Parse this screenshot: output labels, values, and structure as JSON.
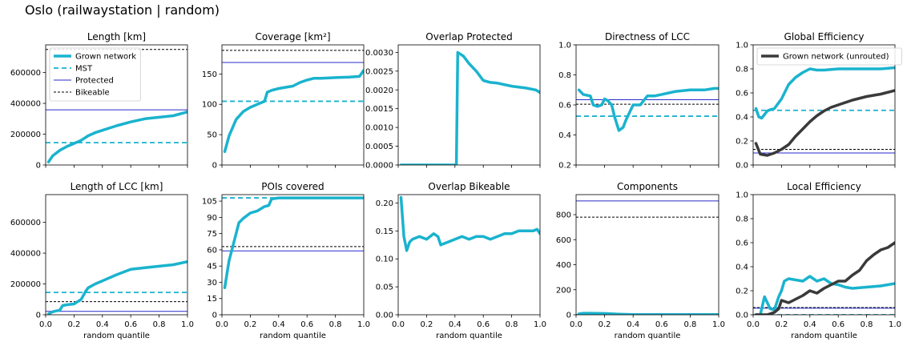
{
  "title": "Oslo (railwaystation | random)",
  "colors": {
    "grown": "#1ab3ce",
    "mst": "#1ab3ce",
    "protected": "#2a2acd",
    "bikeable": "#000000",
    "unrouted": "#3a3a3a",
    "axis": "#000000"
  },
  "chart_data": [
    {
      "id": "length",
      "type": "line",
      "title": "Length [km]",
      "xlim": [
        0,
        1
      ],
      "ylim": [
        0,
        780000
      ],
      "xticks": [
        0,
        0.2,
        0.4,
        0.6,
        0.8,
        1.0
      ],
      "xticklabels": [],
      "yticks": [
        0,
        200000,
        400000,
        600000
      ],
      "yticklabels": [
        "0",
        "200000",
        "400000",
        "600000"
      ],
      "hlines": [
        {
          "kind": "mst",
          "value": 145000
        },
        {
          "kind": "protected",
          "value": 358000
        },
        {
          "kind": "bikeable",
          "value": 750000
        }
      ],
      "series": [
        {
          "name": "Grown network",
          "kind": "grown",
          "x": [
            0.02,
            0.05,
            0.1,
            0.15,
            0.2,
            0.25,
            0.3,
            0.35,
            0.4,
            0.5,
            0.6,
            0.7,
            0.8,
            0.9,
            1.0
          ],
          "y": [
            20000,
            60000,
            95000,
            120000,
            140000,
            160000,
            190000,
            210000,
            225000,
            255000,
            280000,
            300000,
            310000,
            320000,
            345000
          ]
        }
      ],
      "legend": {
        "position": "top-left",
        "entries": [
          {
            "label": "Grown network",
            "kind": "grown"
          },
          {
            "label": "MST",
            "kind": "mst"
          },
          {
            "label": "Protected",
            "kind": "protected"
          },
          {
            "label": "Bikeable",
            "kind": "bikeable"
          }
        ]
      }
    },
    {
      "id": "coverage",
      "type": "line",
      "title": "Coverage [km²]",
      "xlim": [
        0,
        1
      ],
      "ylim": [
        0,
        198
      ],
      "xticks": [
        0,
        0.2,
        0.4,
        0.6,
        0.8,
        1.0
      ],
      "xticklabels": [],
      "yticks": [
        0,
        50,
        100,
        150
      ],
      "yticklabels": [
        "0",
        "50",
        "100",
        "150"
      ],
      "hlines": [
        {
          "kind": "mst",
          "value": 105
        },
        {
          "kind": "protected",
          "value": 169
        },
        {
          "kind": "bikeable",
          "value": 189
        }
      ],
      "series": [
        {
          "name": "Grown network",
          "kind": "grown",
          "x": [
            0.02,
            0.05,
            0.1,
            0.15,
            0.2,
            0.25,
            0.3,
            0.32,
            0.35,
            0.4,
            0.45,
            0.5,
            0.55,
            0.6,
            0.65,
            0.7,
            0.8,
            0.9,
            0.97,
            1.0
          ],
          "y": [
            22,
            48,
            75,
            88,
            95,
            100,
            105,
            120,
            123,
            126,
            128,
            130,
            136,
            140,
            143,
            143,
            144,
            145,
            146,
            156
          ]
        }
      ]
    },
    {
      "id": "overlap_protected",
      "type": "line",
      "title": "Overlap Protected",
      "xlim": [
        0,
        1
      ],
      "ylim": [
        0,
        0.0032
      ],
      "xticks": [
        0,
        0.2,
        0.4,
        0.6,
        0.8,
        1.0
      ],
      "xticklabels": [],
      "yticks": [
        0,
        0.0005,
        0.001,
        0.0015,
        0.002,
        0.0025,
        0.003
      ],
      "yticklabels": [
        "0.0000",
        "0.0005",
        "0.0010",
        "0.0015",
        "0.0020",
        "0.0025",
        "0.0030"
      ],
      "hlines": [],
      "series": [
        {
          "name": "Grown network",
          "kind": "grown",
          "x": [
            0.02,
            0.1,
            0.2,
            0.3,
            0.4,
            0.41,
            0.42,
            0.46,
            0.5,
            0.55,
            0.6,
            0.65,
            0.7,
            0.8,
            0.9,
            0.97,
            1.0
          ],
          "y": [
            0,
            0,
            0,
            0,
            0,
            0,
            0.003,
            0.0029,
            0.0027,
            0.0025,
            0.00225,
            0.0022,
            0.00218,
            0.0021,
            0.00205,
            0.002,
            0.00193
          ]
        }
      ]
    },
    {
      "id": "directness",
      "type": "line",
      "title": "Directness of LCC",
      "xlim": [
        0,
        1
      ],
      "ylim": [
        0.2,
        1.0
      ],
      "xticks": [
        0,
        0.2,
        0.4,
        0.6,
        0.8,
        1.0
      ],
      "xticklabels": [],
      "yticks": [
        0.2,
        0.4,
        0.6,
        0.8,
        1.0
      ],
      "yticklabels": [
        "0.2",
        "0.4",
        "0.6",
        "0.8",
        "1.0"
      ],
      "hlines": [
        {
          "kind": "mst",
          "value": 0.525
        },
        {
          "kind": "protected",
          "value": 0.635
        },
        {
          "kind": "bikeable",
          "value": 0.605
        }
      ],
      "series": [
        {
          "name": "Grown network",
          "kind": "grown",
          "x": [
            0.02,
            0.05,
            0.1,
            0.12,
            0.15,
            0.18,
            0.2,
            0.22,
            0.25,
            0.27,
            0.3,
            0.33,
            0.35,
            0.4,
            0.45,
            0.5,
            0.55,
            0.6,
            0.65,
            0.7,
            0.8,
            0.9,
            0.97,
            1.0
          ],
          "y": [
            0.7,
            0.67,
            0.66,
            0.6,
            0.59,
            0.6,
            0.64,
            0.63,
            0.6,
            0.52,
            0.43,
            0.45,
            0.5,
            0.6,
            0.6,
            0.66,
            0.66,
            0.67,
            0.68,
            0.69,
            0.7,
            0.7,
            0.71,
            0.71
          ]
        }
      ]
    },
    {
      "id": "global_eff",
      "type": "line",
      "title": "Global Efficiency",
      "xlim": [
        0,
        1
      ],
      "ylim": [
        0,
        1.0
      ],
      "xticks": [
        0,
        0.2,
        0.4,
        0.6,
        0.8,
        1.0
      ],
      "xticklabels": [],
      "yticks": [
        0,
        0.2,
        0.4,
        0.6,
        0.8,
        1.0
      ],
      "yticklabels": [
        "0.0",
        "0.2",
        "0.4",
        "0.6",
        "0.8",
        "1.0"
      ],
      "hlines": [
        {
          "kind": "mst",
          "value": 0.455
        },
        {
          "kind": "protected",
          "value": 0.1
        },
        {
          "kind": "bikeable",
          "value": 0.13
        }
      ],
      "series": [
        {
          "name": "Grown network",
          "kind": "grown",
          "x": [
            0.02,
            0.04,
            0.06,
            0.08,
            0.1,
            0.12,
            0.15,
            0.2,
            0.25,
            0.3,
            0.35,
            0.4,
            0.45,
            0.5,
            0.6,
            0.7,
            0.8,
            0.9,
            1.0
          ],
          "y": [
            0.47,
            0.4,
            0.39,
            0.42,
            0.45,
            0.46,
            0.47,
            0.55,
            0.67,
            0.73,
            0.77,
            0.8,
            0.79,
            0.79,
            0.8,
            0.8,
            0.8,
            0.8,
            0.81
          ]
        },
        {
          "name": "Grown network (unrouted)",
          "kind": "unrouted",
          "x": [
            0.02,
            0.05,
            0.1,
            0.15,
            0.2,
            0.25,
            0.3,
            0.35,
            0.4,
            0.45,
            0.5,
            0.55,
            0.6,
            0.7,
            0.8,
            0.9,
            1.0
          ],
          "y": [
            0.18,
            0.09,
            0.08,
            0.1,
            0.13,
            0.17,
            0.24,
            0.3,
            0.36,
            0.41,
            0.45,
            0.48,
            0.5,
            0.54,
            0.57,
            0.59,
            0.62
          ]
        }
      ],
      "legend": {
        "position": "top-left",
        "entries": [
          {
            "label": "Grown network (unrouted)",
            "kind": "unrouted"
          }
        ]
      }
    },
    {
      "id": "length_lcc",
      "type": "line",
      "title": "Length of LCC [km]",
      "xlim": [
        0,
        1
      ],
      "ylim": [
        0,
        780000
      ],
      "xticks": [
        0,
        0.2,
        0.4,
        0.6,
        0.8,
        1.0
      ],
      "xticklabels": [
        "0.0",
        "0.2",
        "0.4",
        "0.6",
        "0.8",
        "1.0"
      ],
      "yticks": [
        0,
        200000,
        400000,
        600000
      ],
      "yticklabels": [
        "0",
        "200000",
        "400000",
        "600000"
      ],
      "xlabel": "random quantile",
      "hlines": [
        {
          "kind": "mst",
          "value": 145000
        },
        {
          "kind": "protected",
          "value": 22000
        },
        {
          "kind": "bikeable",
          "value": 85000
        }
      ],
      "series": [
        {
          "name": "Grown network",
          "kind": "grown",
          "x": [
            0.02,
            0.05,
            0.1,
            0.12,
            0.15,
            0.2,
            0.25,
            0.28,
            0.3,
            0.35,
            0.4,
            0.5,
            0.6,
            0.7,
            0.8,
            0.9,
            1.0
          ],
          "y": [
            5000,
            20000,
            30000,
            60000,
            65000,
            70000,
            100000,
            150000,
            175000,
            200000,
            220000,
            260000,
            295000,
            305000,
            315000,
            325000,
            345000
          ]
        }
      ]
    },
    {
      "id": "pois",
      "type": "line",
      "title": "POIs covered",
      "xlim": [
        0,
        1
      ],
      "ylim": [
        0,
        111
      ],
      "xticks": [
        0,
        0.2,
        0.4,
        0.6,
        0.8,
        1.0
      ],
      "xticklabels": [
        "0.0",
        "0.2",
        "0.4",
        "0.6",
        "0.8",
        "1.0"
      ],
      "yticks": [
        0,
        15,
        30,
        45,
        60,
        75,
        90,
        105
      ],
      "yticklabels": [
        "0",
        "15",
        "30",
        "45",
        "60",
        "75",
        "90",
        "105"
      ],
      "xlabel": "random quantile",
      "hlines": [
        {
          "kind": "mst",
          "value": 108
        },
        {
          "kind": "protected",
          "value": 59
        },
        {
          "kind": "bikeable",
          "value": 63
        }
      ],
      "series": [
        {
          "name": "Grown network",
          "kind": "grown",
          "x": [
            0.02,
            0.05,
            0.08,
            0.1,
            0.12,
            0.15,
            0.2,
            0.25,
            0.3,
            0.33,
            0.35,
            0.4,
            0.5,
            0.6,
            0.8,
            1.0
          ],
          "y": [
            25,
            50,
            65,
            75,
            85,
            89,
            94,
            96,
            100,
            101,
            107,
            108,
            108,
            108,
            108,
            108
          ]
        }
      ]
    },
    {
      "id": "overlap_bikeable",
      "type": "line",
      "title": "Overlap Bikeable",
      "xlim": [
        0,
        1
      ],
      "ylim": [
        0,
        0.215
      ],
      "xticks": [
        0,
        0.2,
        0.4,
        0.6,
        0.8,
        1.0
      ],
      "xticklabels": [
        "0.0",
        "0.2",
        "0.4",
        "0.6",
        "0.8",
        "1.0"
      ],
      "yticks": [
        0,
        0.05,
        0.1,
        0.15,
        0.2
      ],
      "yticklabels": [
        "0.00",
        "0.05",
        "0.10",
        "0.15",
        "0.20"
      ],
      "xlabel": "random quantile",
      "hlines": [],
      "series": [
        {
          "name": "Grown network",
          "kind": "grown",
          "x": [
            0.02,
            0.04,
            0.06,
            0.08,
            0.1,
            0.15,
            0.2,
            0.25,
            0.28,
            0.3,
            0.35,
            0.4,
            0.45,
            0.5,
            0.55,
            0.6,
            0.65,
            0.7,
            0.75,
            0.8,
            0.85,
            0.9,
            0.95,
            0.98,
            1.0
          ],
          "y": [
            0.21,
            0.14,
            0.115,
            0.13,
            0.135,
            0.14,
            0.135,
            0.145,
            0.14,
            0.125,
            0.13,
            0.135,
            0.14,
            0.135,
            0.14,
            0.14,
            0.135,
            0.14,
            0.145,
            0.145,
            0.15,
            0.15,
            0.15,
            0.153,
            0.145
          ]
        }
      ]
    },
    {
      "id": "components",
      "type": "line",
      "title": "Components",
      "xlim": [
        0,
        1
      ],
      "ylim": [
        0,
        960
      ],
      "xticks": [
        0,
        0.2,
        0.4,
        0.6,
        0.8,
        1.0
      ],
      "xticklabels": [
        "0.0",
        "0.2",
        "0.4",
        "0.6",
        "0.8",
        "1.0"
      ],
      "yticks": [
        0,
        200,
        400,
        600,
        800
      ],
      "yticklabels": [
        "0",
        "200",
        "400",
        "600",
        "800"
      ],
      "xlabel": "random quantile",
      "hlines": [
        {
          "kind": "mst",
          "value": 1
        },
        {
          "kind": "protected",
          "value": 910
        },
        {
          "kind": "bikeable",
          "value": 780
        }
      ],
      "series": [
        {
          "name": "Grown network",
          "kind": "grown",
          "x": [
            0.02,
            0.05,
            0.1,
            0.2,
            0.3,
            0.4,
            0.6,
            0.8,
            1.0
          ],
          "y": [
            8,
            12,
            12,
            10,
            5,
            2,
            1,
            1,
            1
          ]
        }
      ]
    },
    {
      "id": "local_eff",
      "type": "line",
      "title": "Local Efficiency",
      "xlim": [
        0,
        1
      ],
      "ylim": [
        0,
        1.0
      ],
      "xticks": [
        0,
        0.2,
        0.4,
        0.6,
        0.8,
        1.0
      ],
      "xticklabels": [
        "0.0",
        "0.2",
        "0.4",
        "0.6",
        "0.8",
        "1.0"
      ],
      "yticks": [
        0,
        0.2,
        0.4,
        0.6,
        0.8,
        1.0
      ],
      "yticklabels": [
        "0.0",
        "0.2",
        "0.4",
        "0.6",
        "0.8",
        "1.0"
      ],
      "xlabel": "random quantile",
      "hlines": [
        {
          "kind": "mst",
          "value": 0.0
        },
        {
          "kind": "protected",
          "value": 0.055
        },
        {
          "kind": "bikeable",
          "value": 0.06
        }
      ],
      "series": [
        {
          "name": "Grown network",
          "kind": "grown",
          "x": [
            0.02,
            0.05,
            0.08,
            0.1,
            0.12,
            0.15,
            0.18,
            0.2,
            0.22,
            0.25,
            0.3,
            0.35,
            0.4,
            0.45,
            0.5,
            0.55,
            0.6,
            0.65,
            0.7,
            0.8,
            0.9,
            1.0
          ],
          "y": [
            0,
            0,
            0.15,
            0.1,
            0.05,
            0.04,
            0.15,
            0.2,
            0.28,
            0.3,
            0.29,
            0.28,
            0.32,
            0.28,
            0.3,
            0.26,
            0.25,
            0.23,
            0.22,
            0.23,
            0.24,
            0.26
          ]
        },
        {
          "name": "Grown network (unrouted)",
          "kind": "unrouted",
          "x": [
            0.02,
            0.05,
            0.1,
            0.15,
            0.18,
            0.2,
            0.25,
            0.3,
            0.35,
            0.4,
            0.45,
            0.5,
            0.55,
            0.6,
            0.65,
            0.7,
            0.75,
            0.8,
            0.85,
            0.9,
            0.95,
            1.0
          ],
          "y": [
            0,
            0,
            0,
            0.02,
            0.05,
            0.12,
            0.1,
            0.13,
            0.16,
            0.2,
            0.18,
            0.22,
            0.25,
            0.28,
            0.28,
            0.33,
            0.37,
            0.45,
            0.5,
            0.54,
            0.56,
            0.6
          ]
        }
      ]
    }
  ]
}
